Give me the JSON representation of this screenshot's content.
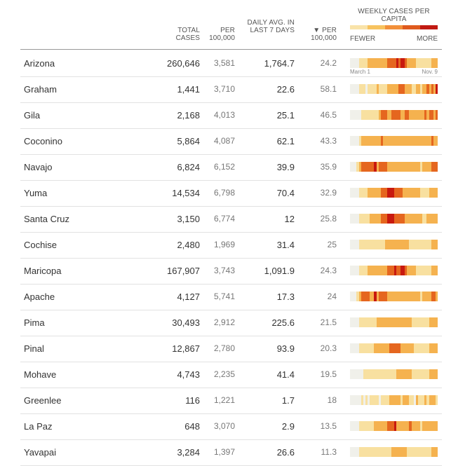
{
  "headers": {
    "total": "TOTAL CASES",
    "per": "PER 100,000",
    "daily": "DAILY AVG. IN LAST 7 DAYS",
    "per7": "▼ PER 100,000",
    "weekly": "WEEKLY CASES PER CAPITA"
  },
  "legend": {
    "fewer": "FEWER",
    "more": "MORE",
    "colors": [
      "#f9e3a9",
      "#f7c35f",
      "#f2903a",
      "#df5a1e",
      "#c11a12"
    ]
  },
  "dates": {
    "start": "March 1",
    "end": "Nov. 9"
  },
  "chart_data": {
    "type": "table",
    "columns": [
      "TOTAL CASES",
      "PER 100,000",
      "DAILY AVG. IN LAST 7 DAYS",
      "PER 100,000",
      "WEEKLY CASES PER CAPITA"
    ],
    "rows": [
      {
        "name": "Arizona",
        "total": "260,646",
        "per": "3,581",
        "daily": "1,764.7",
        "per7": "24.2",
        "weekly": "0000111122222222233334344322221111111222"
      },
      {
        "name": "Graham",
        "total": "1,441",
        "per": "3,710",
        "daily": "22.6",
        "per7": "58.1",
        "weekly": "0000111011112111122222333222112212232324"
      },
      {
        "name": "Gila",
        "total": "2,168",
        "per": "4,013",
        "daily": "25.1",
        "per7": "46.5",
        "weekly": "0000011111111233322333322332222222323323"
      },
      {
        "name": "Coconino",
        "total": "5,864",
        "per": "4,087",
        "daily": "62.1",
        "per7": "43.3",
        "weekly": "0000122222222232222222222222222222222322"
      },
      {
        "name": "Navajo",
        "total": "6,824",
        "per": "6,152",
        "daily": "39.9",
        "per7": "35.9",
        "weekly": "0001233333342333322222222222222212222333"
      },
      {
        "name": "Yuma",
        "total": "14,534",
        "per": "6,798",
        "daily": "70.4",
        "per7": "32.9",
        "weekly": "0000111122222233344433332222222211112222"
      },
      {
        "name": "Santa Cruz",
        "total": "3,150",
        "per": "6,774",
        "daily": "12",
        "per7": "25.8",
        "weekly": "0000111112222233344433333222222221122222"
      },
      {
        "name": "Cochise",
        "total": "2,480",
        "per": "1,969",
        "daily": "31.4",
        "per7": "25",
        "weekly": "0000111111111111222222222221111111111222"
      },
      {
        "name": "Maricopa",
        "total": "167,907",
        "per": "3,743",
        "daily": "1,091.9",
        "per7": "24.3",
        "weekly": "0000111122222222233343344322221111111222"
      },
      {
        "name": "Apache",
        "total": "4,127",
        "per": "5,741",
        "daily": "17.3",
        "per7": "24",
        "weekly": "0001233332242333322222222222222212222332"
      },
      {
        "name": "Pima",
        "total": "30,493",
        "per": "2,912",
        "daily": "225.6",
        "per7": "21.5",
        "weekly": "0000111111112222222222222222111111112222"
      },
      {
        "name": "Pinal",
        "total": "12,867",
        "per": "2,780",
        "daily": "93.9",
        "per7": "20.3",
        "weekly": "0000111111122222223333322222211111112222"
      },
      {
        "name": "Mohave",
        "total": "4,743",
        "per": "2,235",
        "daily": "41.4",
        "per7": "19.5",
        "weekly": "0000001111111111111112222222111111112222"
      },
      {
        "name": "Greenlee",
        "total": "116",
        "per": "1,221",
        "daily": "1.7",
        "per7": "18",
        "weekly": "0000010101111011112222212221102111212221"
      },
      {
        "name": "La Paz",
        "total": "648",
        "per": "3,070",
        "daily": "2.9",
        "per7": "13.5",
        "weekly": "0000111111122222233342222223222212222222"
      },
      {
        "name": "Yavapai",
        "total": "3,284",
        "per": "1,397",
        "daily": "26.6",
        "per7": "11.3",
        "weekly": "0000111111111111111222222211111111111222"
      }
    ]
  }
}
